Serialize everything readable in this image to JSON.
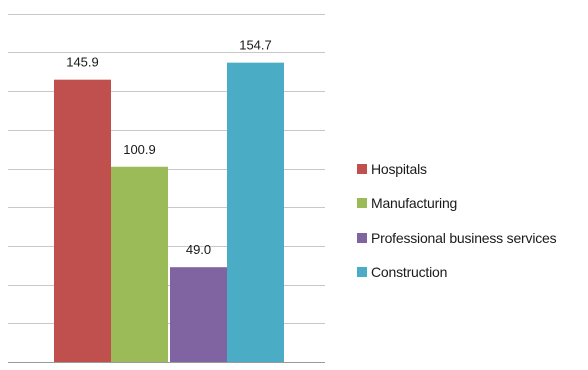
{
  "chart_data": {
    "type": "bar",
    "title": "",
    "xlabel": "",
    "ylabel": "",
    "ylim": [
      0,
      180
    ],
    "grid": true,
    "legend_position": "right",
    "categories": [
      "Hospitals",
      "Manufacturing",
      "Professional business services",
      "Construction"
    ],
    "values": [
      145.9,
      100.9,
      49.0,
      154.7
    ],
    "value_labels": [
      "145.9",
      "100.9",
      "49.0",
      "154.7"
    ],
    "colors": [
      "#c0504d",
      "#9bbb59",
      "#8064a2",
      "#4bacc6"
    ],
    "legend": [
      {
        "label": "Hospitals",
        "color": "#c0504d"
      },
      {
        "label": "Manufacturing",
        "color": "#9bbb59"
      },
      {
        "label": "Professional business services",
        "color": "#8064a2"
      },
      {
        "label": "Construction",
        "color": "#4bacc6"
      }
    ]
  }
}
